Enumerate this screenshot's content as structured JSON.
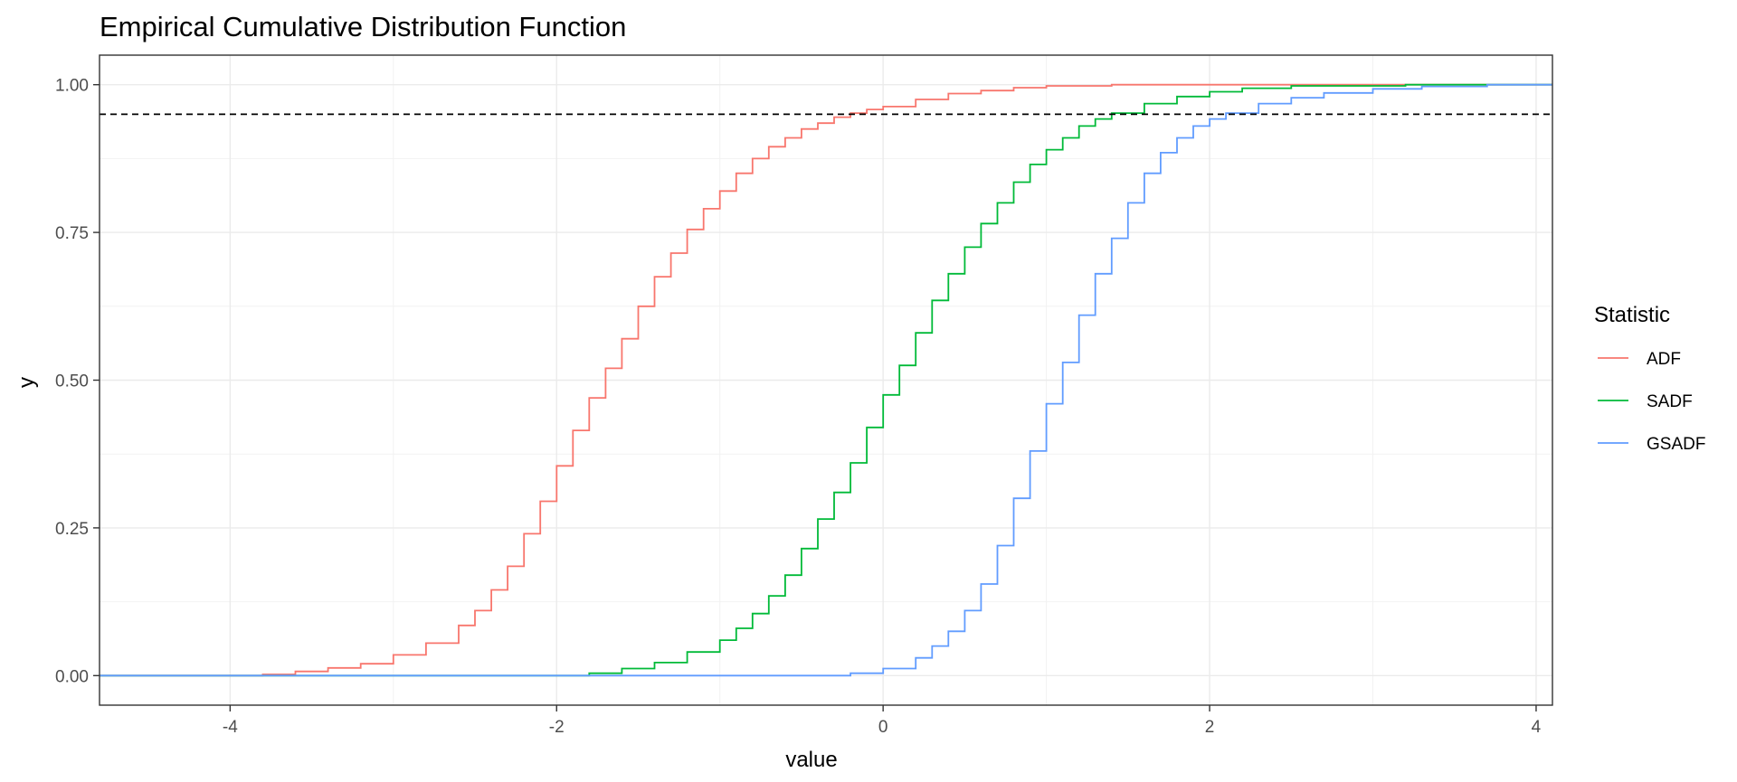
{
  "chart_data": {
    "type": "line",
    "title": "Empirical Cumulative Distribution Function",
    "xlabel": "value",
    "ylabel": "y",
    "xlim": [
      -4.8,
      4.1
    ],
    "ylim": [
      -0.05,
      1.05
    ],
    "x_ticks": [
      -4,
      -2,
      0,
      2,
      4
    ],
    "x_tick_labels": [
      "-4",
      "-2",
      "0",
      "2",
      "4"
    ],
    "y_ticks": [
      0,
      0.25,
      0.5,
      0.75,
      1
    ],
    "y_tick_labels": [
      "0.00",
      "0.25",
      "0.50",
      "0.75",
      "1.00"
    ],
    "grid": true,
    "legend_title": "Statistic",
    "legend_position": "right",
    "reference_line": {
      "y": 0.95,
      "style": "dashed",
      "color": "#000000"
    },
    "series": [
      {
        "name": "ADF",
        "color": "#F8766D",
        "points": [
          [
            -4.8,
            0
          ],
          [
            -4.0,
            0
          ],
          [
            -3.8,
            0.002
          ],
          [
            -3.6,
            0.007
          ],
          [
            -3.4,
            0.013
          ],
          [
            -3.2,
            0.02
          ],
          [
            -3.0,
            0.035
          ],
          [
            -2.8,
            0.055
          ],
          [
            -2.6,
            0.085
          ],
          [
            -2.5,
            0.11
          ],
          [
            -2.4,
            0.145
          ],
          [
            -2.3,
            0.185
          ],
          [
            -2.2,
            0.24
          ],
          [
            -2.1,
            0.295
          ],
          [
            -2.0,
            0.355
          ],
          [
            -1.9,
            0.415
          ],
          [
            -1.8,
            0.47
          ],
          [
            -1.7,
            0.52
          ],
          [
            -1.6,
            0.57
          ],
          [
            -1.5,
            0.625
          ],
          [
            -1.4,
            0.675
          ],
          [
            -1.3,
            0.715
          ],
          [
            -1.2,
            0.755
          ],
          [
            -1.1,
            0.79
          ],
          [
            -1.0,
            0.82
          ],
          [
            -0.9,
            0.85
          ],
          [
            -0.8,
            0.875
          ],
          [
            -0.7,
            0.895
          ],
          [
            -0.6,
            0.91
          ],
          [
            -0.5,
            0.925
          ],
          [
            -0.4,
            0.935
          ],
          [
            -0.3,
            0.945
          ],
          [
            -0.2,
            0.952
          ],
          [
            -0.1,
            0.958
          ],
          [
            0.0,
            0.963
          ],
          [
            0.2,
            0.975
          ],
          [
            0.4,
            0.985
          ],
          [
            0.6,
            0.99
          ],
          [
            0.8,
            0.995
          ],
          [
            1.0,
            0.998
          ],
          [
            1.4,
            1.0
          ],
          [
            4.1,
            1.0
          ]
        ]
      },
      {
        "name": "SADF",
        "color": "#00BA38",
        "points": [
          [
            -4.8,
            0
          ],
          [
            -2.0,
            0
          ],
          [
            -1.8,
            0.004
          ],
          [
            -1.6,
            0.012
          ],
          [
            -1.4,
            0.022
          ],
          [
            -1.2,
            0.04
          ],
          [
            -1.0,
            0.06
          ],
          [
            -0.9,
            0.08
          ],
          [
            -0.8,
            0.105
          ],
          [
            -0.7,
            0.135
          ],
          [
            -0.6,
            0.17
          ],
          [
            -0.5,
            0.215
          ],
          [
            -0.4,
            0.265
          ],
          [
            -0.3,
            0.31
          ],
          [
            -0.2,
            0.36
          ],
          [
            -0.1,
            0.42
          ],
          [
            0.0,
            0.475
          ],
          [
            0.1,
            0.525
          ],
          [
            0.2,
            0.58
          ],
          [
            0.3,
            0.635
          ],
          [
            0.4,
            0.68
          ],
          [
            0.5,
            0.725
          ],
          [
            0.6,
            0.765
          ],
          [
            0.7,
            0.8
          ],
          [
            0.8,
            0.835
          ],
          [
            0.9,
            0.865
          ],
          [
            1.0,
            0.89
          ],
          [
            1.1,
            0.91
          ],
          [
            1.2,
            0.93
          ],
          [
            1.3,
            0.942
          ],
          [
            1.4,
            0.952
          ],
          [
            1.6,
            0.968
          ],
          [
            1.8,
            0.98
          ],
          [
            2.0,
            0.988
          ],
          [
            2.2,
            0.994
          ],
          [
            2.5,
            0.998
          ],
          [
            3.2,
            1.0
          ],
          [
            4.1,
            1.0
          ]
        ]
      },
      {
        "name": "GSADF",
        "color": "#619CFF",
        "points": [
          [
            -4.8,
            0
          ],
          [
            -0.4,
            0
          ],
          [
            -0.2,
            0.004
          ],
          [
            0.0,
            0.012
          ],
          [
            0.2,
            0.03
          ],
          [
            0.3,
            0.05
          ],
          [
            0.4,
            0.075
          ],
          [
            0.5,
            0.11
          ],
          [
            0.6,
            0.155
          ],
          [
            0.7,
            0.22
          ],
          [
            0.8,
            0.3
          ],
          [
            0.9,
            0.38
          ],
          [
            1.0,
            0.46
          ],
          [
            1.1,
            0.53
          ],
          [
            1.2,
            0.61
          ],
          [
            1.3,
            0.68
          ],
          [
            1.4,
            0.74
          ],
          [
            1.5,
            0.8
          ],
          [
            1.6,
            0.85
          ],
          [
            1.7,
            0.885
          ],
          [
            1.8,
            0.91
          ],
          [
            1.9,
            0.93
          ],
          [
            2.0,
            0.942
          ],
          [
            2.1,
            0.952
          ],
          [
            2.3,
            0.968
          ],
          [
            2.5,
            0.978
          ],
          [
            2.7,
            0.986
          ],
          [
            3.0,
            0.993
          ],
          [
            3.3,
            0.997
          ],
          [
            3.7,
            1.0
          ],
          [
            4.1,
            1.0
          ]
        ]
      }
    ]
  }
}
